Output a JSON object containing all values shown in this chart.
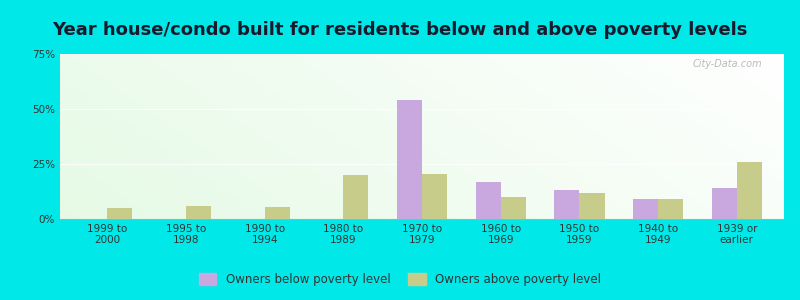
{
  "title": "Year house/condo built for residents below and above poverty levels",
  "categories": [
    "1999 to\n2000",
    "1995 to\n1998",
    "1990 to\n1994",
    "1980 to\n1989",
    "1970 to\n1979",
    "1960 to\n1969",
    "1950 to\n1959",
    "1940 to\n1949",
    "1939 or\nearlier"
  ],
  "below_poverty": [
    0.0,
    0.0,
    0.0,
    0.0,
    54.0,
    17.0,
    13.0,
    9.0,
    14.0
  ],
  "above_poverty": [
    5.0,
    6.0,
    5.5,
    20.0,
    20.5,
    10.0,
    12.0,
    9.0,
    26.0
  ],
  "below_color": "#c9a8e0",
  "above_color": "#c8cc8a",
  "outer_bg": "#00e8e8",
  "ylim": [
    0,
    75
  ],
  "yticks": [
    0,
    25,
    50,
    75
  ],
  "ytick_labels": [
    "0%",
    "25%",
    "50%",
    "75%"
  ],
  "legend_below": "Owners below poverty level",
  "legend_above": "Owners above poverty level",
  "title_fontsize": 13,
  "tick_fontsize": 7.5,
  "legend_fontsize": 8.5
}
